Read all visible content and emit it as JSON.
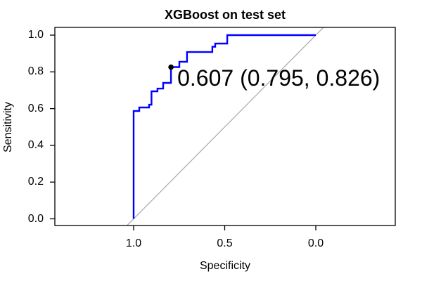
{
  "title": "XGBoost on test set",
  "axes": {
    "x": {
      "label": "Specificity",
      "tick_labels": [
        "1.0",
        "0.5",
        "0.0"
      ],
      "tick_values": [
        1.0,
        0.5,
        0.0
      ],
      "reversed": true
    },
    "y": {
      "label": "Sensitivity",
      "tick_labels": [
        "0.0",
        "0.2",
        "0.4",
        "0.6",
        "0.8",
        "1.0"
      ],
      "tick_values": [
        0.0,
        0.2,
        0.4,
        0.6,
        0.8,
        1.0
      ]
    }
  },
  "annotation": {
    "text": "0.607 (0.795, 0.826)",
    "threshold": 0.607,
    "specificity": 0.795,
    "sensitivity": 0.826
  },
  "colors": {
    "roc_curve": "#0000FF",
    "identity_line": "#A9A9A9",
    "marked_point": "#000000",
    "frame": "#000000",
    "text": "#000000",
    "background": "#FFFFFF"
  },
  "chart_data": {
    "type": "line",
    "subtype": "roc-step-curve",
    "title": "XGBoost on test set",
    "xlabel": "Specificity",
    "ylabel": "Sensitivity",
    "x_axis_reversed": true,
    "xlim": [
      1.0,
      0.0
    ],
    "ylim": [
      0.0,
      1.0
    ],
    "x_ticks": [
      1.0,
      0.5,
      0.0
    ],
    "y_ticks": [
      0.0,
      0.2,
      0.4,
      0.6,
      0.8,
      1.0
    ],
    "grid": false,
    "legend": false,
    "series": [
      {
        "name": "ROC curve (XGBoost, test set)",
        "color": "#0000FF",
        "style": "step",
        "points_spec_sens": [
          [
            1.0,
            0.0
          ],
          [
            1.0,
            0.587
          ],
          [
            0.969,
            0.587
          ],
          [
            0.969,
            0.606
          ],
          [
            0.915,
            0.606
          ],
          [
            0.915,
            0.621
          ],
          [
            0.902,
            0.621
          ],
          [
            0.902,
            0.694
          ],
          [
            0.869,
            0.694
          ],
          [
            0.869,
            0.709
          ],
          [
            0.838,
            0.709
          ],
          [
            0.838,
            0.74
          ],
          [
            0.795,
            0.74
          ],
          [
            0.795,
            0.826
          ],
          [
            0.749,
            0.826
          ],
          [
            0.749,
            0.855
          ],
          [
            0.707,
            0.855
          ],
          [
            0.707,
            0.908
          ],
          [
            0.568,
            0.908
          ],
          [
            0.568,
            0.937
          ],
          [
            0.552,
            0.937
          ],
          [
            0.552,
            0.954
          ],
          [
            0.486,
            0.954
          ],
          [
            0.486,
            1.0
          ],
          [
            0.0,
            1.0
          ]
        ]
      },
      {
        "name": "identity line",
        "color": "#A9A9A9",
        "style": "straight",
        "points_spec_sens": [
          [
            1.036,
            -0.036
          ],
          [
            -0.042,
            1.042
          ]
        ]
      }
    ],
    "marked_point": {
      "label": "0.607 (0.795, 0.826)",
      "threshold": 0.607,
      "specificity": 0.795,
      "sensitivity": 0.826,
      "color": "#000000"
    }
  }
}
